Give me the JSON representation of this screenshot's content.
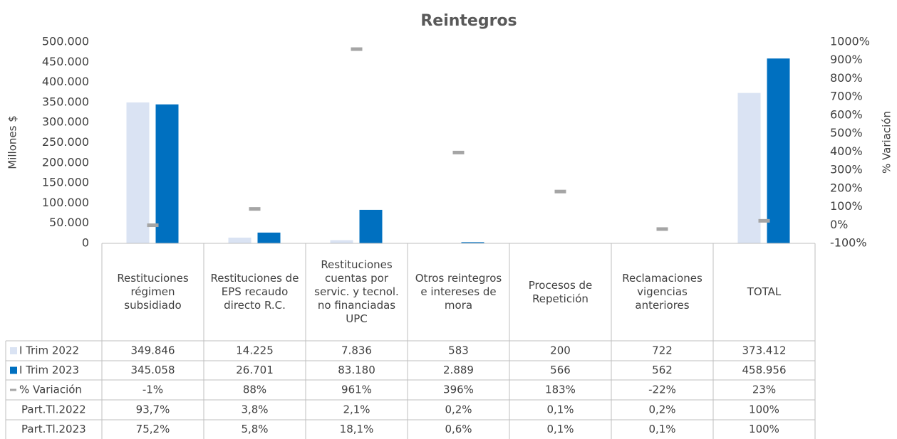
{
  "chart_data": {
    "type": "bar",
    "title": "Reintegros",
    "y_label": "Millones $",
    "y2_label": "% Variación",
    "categories": [
      "Restituciones régimen subsidiado",
      "Restituciones de EPS recaudo directo R.C.",
      "Restituciones cuentas por servic. y tecnol. no financiadas UPC",
      "Otros reintegros e intereses de mora",
      "Procesos de Repetición",
      "Reclamaciones vigencias anteriores",
      "TOTAL"
    ],
    "series": [
      {
        "name": "I Trim 2022",
        "color": "#dae3f3",
        "values": [
          349846,
          14225,
          7836,
          583,
          200,
          722,
          373412
        ],
        "value_labels": [
          "349.846",
          "14.225",
          "7.836",
          "583",
          "200",
          "722",
          "373.412"
        ]
      },
      {
        "name": "I Trim 2023",
        "color": "#0070c0",
        "values": [
          345058,
          26701,
          83180,
          2889,
          566,
          562,
          458956
        ],
        "value_labels": [
          "345.058",
          "26.701",
          "83.180",
          "2.889",
          "566",
          "562",
          "458.956"
        ]
      },
      {
        "name": "% Variación",
        "color": "#a5a5a5",
        "axis": "y2",
        "values": [
          -1,
          88,
          961,
          396,
          183,
          -22,
          23
        ],
        "value_labels": [
          "-1%",
          "88%",
          "961%",
          "396%",
          "183%",
          "-22%",
          "23%"
        ]
      }
    ],
    "table_rows": [
      {
        "name": "Part.Tl.2022",
        "cells": [
          "93,7%",
          "3,8%",
          "2,1%",
          "0,2%",
          "0,1%",
          "0,2%",
          "100%"
        ]
      },
      {
        "name": "Part.Tl.2023",
        "cells": [
          "75,2%",
          "5,8%",
          "18,1%",
          "0,6%",
          "0,1%",
          "0,1%",
          "100%"
        ]
      }
    ],
    "ylim": [
      0,
      500000
    ],
    "yticks": [
      0,
      {
        "value": 50000,
        "label": "50.000"
      },
      {
        "value": 100000,
        "label": "100.000"
      },
      {
        "value": 150000,
        "label": "150.000"
      },
      {
        "value": 200000,
        "label": "200.000"
      },
      {
        "value": 250000,
        "label": "250.000"
      },
      {
        "value": 300000,
        "label": "300.000"
      },
      {
        "value": 350000,
        "label": "350.000"
      },
      {
        "value": 400000,
        "label": "400.000"
      },
      {
        "value": 450000,
        "label": "450.000"
      },
      {
        "value": 500000,
        "label": "500.000"
      }
    ],
    "y2lim": [
      -100,
      1000
    ],
    "y2ticks": [
      {
        "value": -100,
        "label": "-100%"
      },
      {
        "value": 0,
        "label": "0%"
      },
      {
        "value": 100,
        "label": "100%"
      },
      {
        "value": 200,
        "label": "200%"
      },
      {
        "value": 300,
        "label": "300%"
      },
      {
        "value": 400,
        "label": "400%"
      },
      {
        "value": 500,
        "label": "500%"
      },
      {
        "value": 600,
        "label": "600%"
      },
      {
        "value": 700,
        "label": "700%"
      },
      {
        "value": 800,
        "label": "800%"
      },
      {
        "value": 900,
        "label": "900%"
      },
      {
        "value": 1000,
        "label": "1000%"
      }
    ],
    "grid": false
  }
}
